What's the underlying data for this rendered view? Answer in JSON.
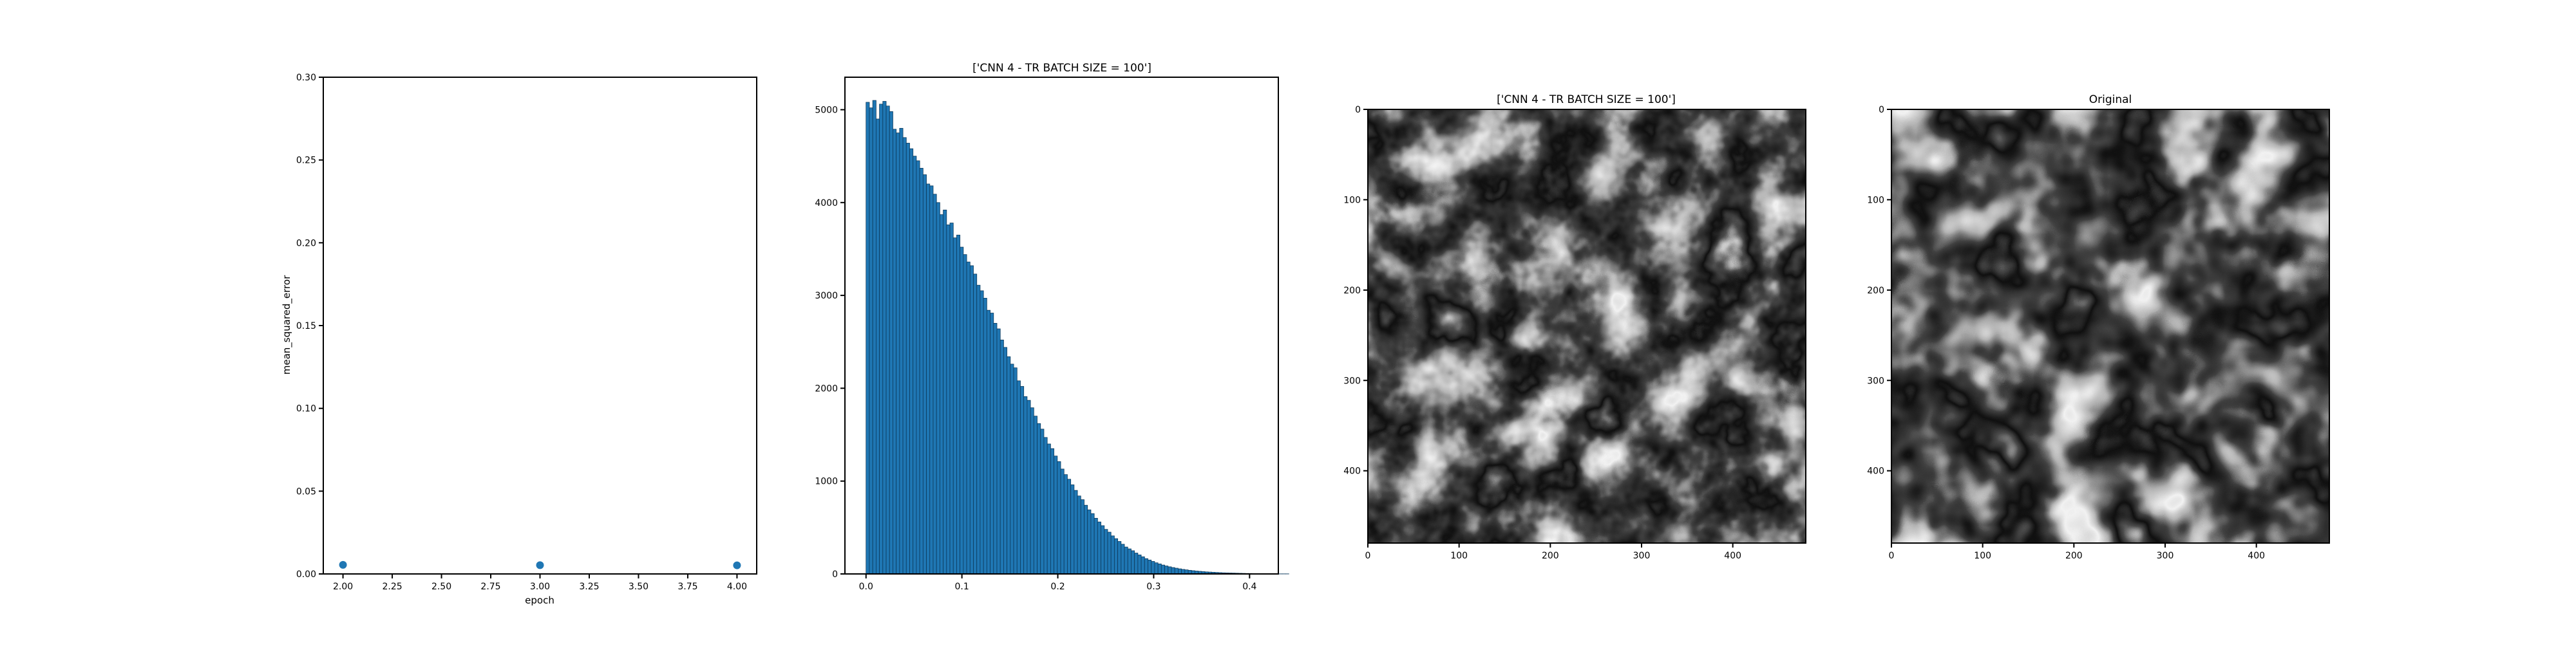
{
  "chart_data": [
    {
      "type": "scatter",
      "title": "",
      "xlabel": "epoch",
      "ylabel": "mean_squared_error",
      "xlim": [
        1.9,
        4.1
      ],
      "ylim": [
        0,
        0.3
      ],
      "xticks": [
        2.0,
        2.25,
        2.5,
        2.75,
        3.0,
        3.25,
        3.5,
        3.75,
        4.0
      ],
      "xtick_labels": [
        "2.00",
        "2.25",
        "2.50",
        "2.75",
        "3.00",
        "3.25",
        "3.50",
        "3.75",
        "4.00"
      ],
      "yticks": [
        0,
        0.05,
        0.1,
        0.15,
        0.2,
        0.25,
        0.3
      ],
      "ytick_labels": [
        "0.00",
        "0.05",
        "0.10",
        "0.15",
        "0.20",
        "0.25",
        "0.30"
      ],
      "x": [
        2,
        3,
        4
      ],
      "y": [
        0.0055,
        0.0053,
        0.0052
      ],
      "color": "#1f77b4",
      "grid": false
    },
    {
      "type": "bar",
      "title": "['CNN 4 - TR BATCH SIZE = 100']",
      "xlabel": "",
      "ylabel": "",
      "xlim": [
        -0.022,
        0.43
      ],
      "ylim": [
        0,
        5350
      ],
      "xticks": [
        0.0,
        0.1,
        0.2,
        0.3,
        0.4
      ],
      "xtick_labels": [
        "0.0",
        "0.1",
        "0.2",
        "0.3",
        "0.4"
      ],
      "yticks": [
        0,
        1000,
        2000,
        3000,
        4000,
        5000
      ],
      "ytick_labels": [
        "0",
        "1000",
        "2000",
        "3000",
        "4000",
        "5000"
      ],
      "bin_width": 0.0035,
      "x_start": 0.0,
      "values": [
        5080,
        5020,
        5100,
        4900,
        5060,
        5090,
        5040,
        4980,
        4790,
        4750,
        4800,
        4700,
        4640,
        4580,
        4500,
        4450,
        4370,
        4300,
        4200,
        4180,
        4090,
        4000,
        3870,
        3920,
        3760,
        3780,
        3620,
        3650,
        3520,
        3440,
        3360,
        3320,
        3230,
        3110,
        3050,
        2970,
        2840,
        2810,
        2700,
        2640,
        2520,
        2440,
        2340,
        2260,
        2220,
        2080,
        2020,
        1910,
        1870,
        1790,
        1700,
        1620,
        1560,
        1470,
        1400,
        1350,
        1270,
        1210,
        1130,
        1070,
        1020,
        960,
        900,
        840,
        800,
        740,
        690,
        650,
        600,
        560,
        520,
        480,
        450,
        410,
        380,
        350,
        320,
        290,
        270,
        250,
        225,
        205,
        185,
        165,
        150,
        135,
        120,
        108,
        96,
        86,
        77,
        69,
        62,
        55,
        49,
        44,
        39,
        35,
        31,
        28,
        25,
        22,
        20,
        18,
        16,
        14,
        12,
        11,
        10,
        9,
        8,
        7,
        6,
        5,
        5,
        4,
        4,
        3,
        3,
        2,
        2,
        2,
        1,
        1,
        1,
        1
      ],
      "color": "#1f77b4",
      "edgecolor": "#0d3a5c",
      "grid": false
    },
    {
      "type": "heatmap",
      "title": "['CNN 4 - TR BATCH SIZE = 100']",
      "xticks": [
        0,
        100,
        200,
        300,
        400
      ],
      "xtick_labels": [
        "0",
        "100",
        "200",
        "300",
        "400"
      ],
      "yticks": [
        0,
        100,
        200,
        300,
        400
      ],
      "ytick_labels": [
        "0",
        "100",
        "200",
        "300",
        "400"
      ],
      "xlim": [
        0,
        480
      ],
      "ylim": [
        0,
        480
      ],
      "cmap": "gray"
    },
    {
      "type": "heatmap",
      "title": "Original",
      "xticks": [
        0,
        100,
        200,
        300,
        400
      ],
      "xtick_labels": [
        "0",
        "100",
        "200",
        "300",
        "400"
      ],
      "yticks": [
        0,
        100,
        200,
        300,
        400
      ],
      "ytick_labels": [
        "0",
        "100",
        "200",
        "300",
        "400"
      ],
      "xlim": [
        0,
        480
      ],
      "ylim": [
        0,
        480
      ],
      "cmap": "gray"
    }
  ]
}
